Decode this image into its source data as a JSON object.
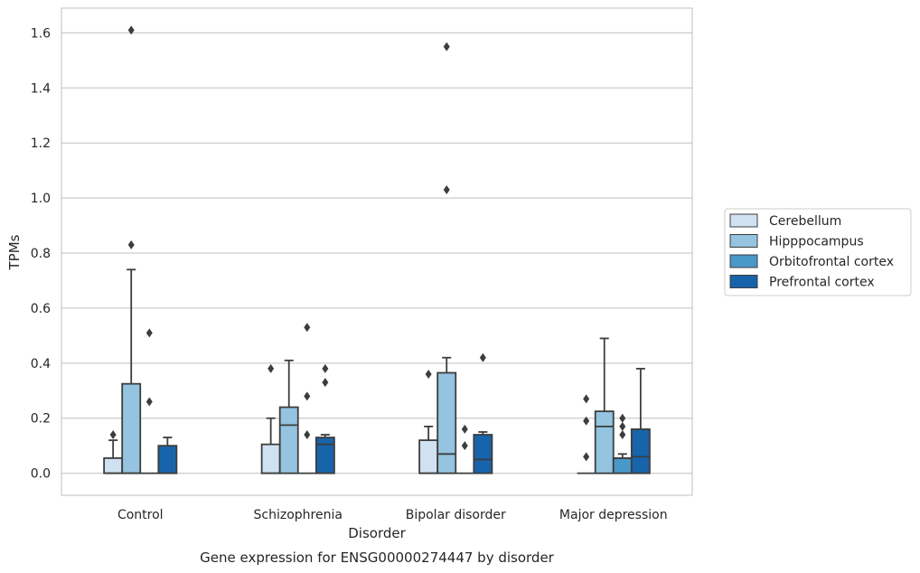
{
  "chart_data": {
    "type": "box",
    "xlabel": "Disorder",
    "ylabel": "TPMs",
    "caption": "Gene expression for ENSG00000274447 by disorder",
    "ylim": [
      -0.08,
      1.69
    ],
    "yticks": [
      "0.0",
      "0.2",
      "0.4",
      "0.6",
      "0.8",
      "1.0",
      "1.2",
      "1.4",
      "1.6"
    ],
    "grid": "horizontal",
    "legend_placement": "right",
    "categories": [
      "Control",
      "Schizophrenia",
      "Bipolar disorder",
      "Major depression"
    ],
    "series": [
      {
        "name": "Cerebellum",
        "color": "#d0e1f2",
        "boxes": [
          {
            "q1": 0,
            "median": 0,
            "q3": 0.055,
            "whisker_low": 0,
            "whisker_high": 0.12,
            "outliers": [
              0.14
            ]
          },
          {
            "q1": 0,
            "median": 0,
            "q3": 0.105,
            "whisker_low": 0,
            "whisker_high": 0.2,
            "outliers": [
              0.38
            ]
          },
          {
            "q1": 0,
            "median": 0,
            "q3": 0.12,
            "whisker_low": 0,
            "whisker_high": 0.17,
            "outliers": [
              0.36
            ]
          },
          {
            "q1": 0,
            "median": 0,
            "q3": 0,
            "whisker_low": 0,
            "whisker_high": 0,
            "outliers": [
              0.06,
              0.19,
              0.27
            ]
          }
        ]
      },
      {
        "name": "Hipppocampus",
        "color": "#94c4df",
        "boxes": [
          {
            "q1": 0,
            "median": 0,
            "q3": 0.325,
            "whisker_low": 0,
            "whisker_high": 0.74,
            "outliers": [
              0.83,
              1.61
            ]
          },
          {
            "q1": 0,
            "median": 0.175,
            "q3": 0.24,
            "whisker_low": 0,
            "whisker_high": 0.41,
            "outliers": []
          },
          {
            "q1": 0,
            "median": 0.07,
            "q3": 0.365,
            "whisker_low": 0,
            "whisker_high": 0.42,
            "outliers": [
              1.03,
              1.55
            ]
          },
          {
            "q1": 0,
            "median": 0.17,
            "q3": 0.225,
            "whisker_low": 0,
            "whisker_high": 0.49,
            "outliers": []
          }
        ]
      },
      {
        "name": "Orbitofrontal cortex",
        "color": "#4a98c9",
        "boxes": [
          {
            "q1": 0,
            "median": 0,
            "q3": 0,
            "whisker_low": 0,
            "whisker_high": 0,
            "outliers": [
              0.26,
              0.51
            ]
          },
          {
            "q1": 0,
            "median": 0,
            "q3": 0,
            "whisker_low": 0,
            "whisker_high": 0,
            "outliers": [
              0.14,
              0.28,
              0.53
            ]
          },
          {
            "q1": 0,
            "median": 0,
            "q3": 0,
            "whisker_low": 0,
            "whisker_high": 0,
            "outliers": [
              0.1,
              0.16
            ]
          },
          {
            "q1": 0,
            "median": 0.055,
            "q3": 0.055,
            "whisker_low": 0,
            "whisker_high": 0.07,
            "outliers": [
              0.14,
              0.17,
              0.2
            ]
          }
        ]
      },
      {
        "name": "Prefrontal cortex",
        "color": "#1764ab",
        "boxes": [
          {
            "q1": 0,
            "median": 0,
            "q3": 0.1,
            "whisker_low": 0,
            "whisker_high": 0.13,
            "outliers": []
          },
          {
            "q1": 0,
            "median": 0.105,
            "q3": 0.13,
            "whisker_low": 0,
            "whisker_high": 0.14,
            "outliers": [
              0.33,
              0.38
            ]
          },
          {
            "q1": 0,
            "median": 0.05,
            "q3": 0.14,
            "whisker_low": 0,
            "whisker_high": 0.15,
            "outliers": [
              0.42
            ]
          },
          {
            "q1": 0,
            "median": 0.06,
            "q3": 0.16,
            "whisker_low": 0,
            "whisker_high": 0.38,
            "outliers": []
          }
        ]
      }
    ]
  }
}
